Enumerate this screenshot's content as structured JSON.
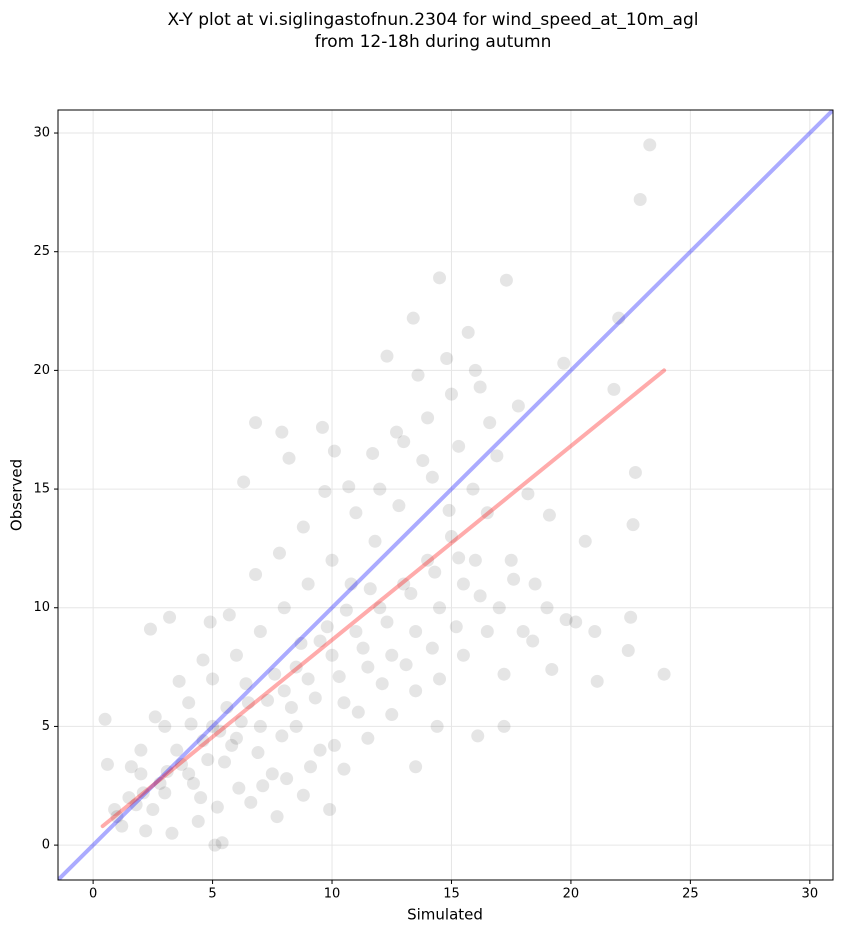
{
  "chart_data": {
    "type": "scatter",
    "title": [
      "X-Y plot at vi.siglingastofnun.2304 for wind_speed_at_10m_agl",
      "from 12-18h during autumn"
    ],
    "xlabel": "Simulated",
    "ylabel": "Observed",
    "xlim": [
      -1.47,
      30.97
    ],
    "ylim": [
      -1.47,
      30.97
    ],
    "xticks": [
      0,
      5,
      10,
      15,
      20,
      25,
      30
    ],
    "yticks": [
      0,
      5,
      10,
      15,
      20,
      25,
      30
    ],
    "grid": true,
    "color": "#000000",
    "x": [
      23.3,
      22.9,
      22.0,
      14.5,
      17.3,
      13.4,
      15.7,
      21.8,
      19.7,
      22.7,
      22.6,
      23.9,
      21.1,
      22.4,
      22.5,
      20.6,
      19.2,
      16.1,
      17.2,
      13.5,
      14.4,
      0.5,
      0.6,
      2.4,
      3.2,
      5.1,
      5.4,
      6.3,
      6.8,
      7.9,
      8.2,
      9.6,
      10.1,
      4.9,
      12.3,
      1,
      1.5,
      2,
      2.5,
      3,
      3.5,
      4,
      4.5,
      5,
      5.5,
      6,
      6.5,
      7,
      7.5,
      8,
      8.5,
      9,
      9.5,
      10,
      10.5,
      11,
      11.5,
      12,
      12.5,
      13,
      13.5,
      14,
      14.5,
      15,
      15.5,
      16,
      16.5,
      17,
      17.5,
      18,
      18.5,
      19,
      13,
      14,
      15,
      16,
      12,
      11,
      10,
      9,
      8,
      7,
      6,
      5,
      4,
      3,
      2,
      1.2,
      2.2,
      3.3,
      4.4,
      6.6,
      7.7,
      8.8,
      9.9,
      10.5,
      11.5,
      12.5,
      13.5,
      14.5,
      15.5,
      16.5,
      17.2,
      18.4,
      19.8,
      20.2,
      21,
      14.2,
      15.3,
      16.6,
      17.8,
      13.6,
      14.8,
      16.2,
      12.8,
      11.8,
      10.8,
      9.8,
      8.7,
      7.6,
      6.4,
      5.6,
      4.6,
      3.7,
      2.8,
      1.8,
      0.9,
      1.6,
      2.6,
      3.6,
      4.6,
      5.7,
      6.8,
      7.8,
      8.8,
      9.7,
      10.7,
      11.7,
      12.7,
      13.8,
      14.9,
      15.9,
      16.9,
      18.2,
      19.1,
      17.6,
      16.2,
      15.2,
      14.2,
      13.1,
      12.1,
      11.1,
      10.1,
      9.1,
      8.1,
      7.1,
      6.1,
      5.2,
      4.2,
      3.1,
      2.1,
      5.8,
      6.9,
      7.9,
      8.3,
      7.3,
      6.2,
      5.3,
      4.8,
      4.1,
      9.3,
      10.3,
      11.3,
      12.3,
      13.3,
      14.3,
      15.3,
      8.5,
      9.5,
      10.6,
      11.6
    ],
    "y": [
      29.5,
      27.2,
      22.2,
      23.9,
      23.8,
      22.2,
      21.6,
      19.2,
      20.3,
      15.7,
      13.5,
      7.2,
      6.9,
      8.2,
      9.6,
      12.8,
      7.4,
      4.6,
      5.0,
      3.3,
      5.0,
      5.3,
      3.4,
      9.1,
      9.6,
      0.0,
      0.1,
      15.3,
      17.8,
      17.4,
      16.3,
      17.6,
      16.6,
      9.4,
      20.6,
      1.2,
      2,
      3,
      1.5,
      2.2,
      4,
      3,
      2,
      5,
      3.5,
      4.5,
      6,
      5,
      3,
      6.5,
      5,
      7,
      4,
      8,
      6,
      9,
      7.5,
      10,
      8,
      11,
      9,
      12,
      10,
      13,
      11,
      12,
      14,
      10,
      12,
      9,
      11,
      10,
      17,
      18,
      19,
      20,
      15,
      14,
      12,
      11,
      10,
      9,
      8,
      7,
      6,
      5,
      4,
      0.8,
      0.6,
      0.5,
      1,
      1.8,
      1.2,
      2.1,
      1.5,
      3.2,
      4.5,
      5.5,
      6.5,
      7,
      8,
      9,
      7.2,
      8.6,
      9.5,
      9.4,
      9,
      15.5,
      16.8,
      17.8,
      18.5,
      19.8,
      20.5,
      19.3,
      14.3,
      12.8,
      11,
      9.2,
      8.5,
      7.2,
      6.8,
      5.8,
      4.4,
      3.4,
      2.6,
      1.7,
      1.5,
      3.3,
      5.4,
      6.9,
      7.8,
      9.7,
      11.4,
      12.3,
      13.4,
      14.9,
      15.1,
      16.5,
      17.4,
      16.2,
      14.1,
      15.0,
      16.4,
      14.8,
      13.9,
      11.2,
      10.5,
      9.2,
      8.3,
      7.6,
      6.8,
      5.6,
      4.2,
      3.3,
      2.8,
      2.5,
      2.4,
      1.6,
      2.6,
      3.1,
      2.2,
      4.2,
      3.9,
      4.6,
      5.8,
      6.1,
      5.2,
      4.8,
      3.6,
      5.1,
      6.2,
      7.1,
      8.3,
      9.4,
      10.6,
      11.5,
      12.1,
      7.5,
      8.6,
      9.9,
      10.8
    ],
    "lines": [
      {
        "color": "#0000ff",
        "x": [
          -1.47,
          30.97
        ],
        "y": [
          -1.47,
          30.97
        ]
      },
      {
        "color": "#ff0000",
        "x": [
          0.4,
          23.9
        ],
        "y": [
          0.8,
          20.0
        ]
      }
    ]
  }
}
